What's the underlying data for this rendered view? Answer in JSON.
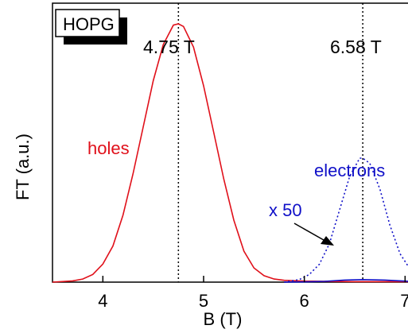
{
  "chart_data": {
    "type": "line",
    "xlabel": "B (T)",
    "ylabel": "FT (a.u.)",
    "xlim": [
      3.5,
      7.1
    ],
    "ylim": [
      0,
      1.08
    ],
    "xticks": [
      {
        "value": 4,
        "label": "4"
      },
      {
        "value": 5,
        "label": "5"
      },
      {
        "value": 6,
        "label": "6"
      },
      {
        "value": 7,
        "label": "7"
      }
    ],
    "grid": false,
    "sample_label": "HOPG",
    "peak_markers": [
      {
        "value": 4.75,
        "label": "4.75 T"
      },
      {
        "value": 6.58,
        "label": "6.58 T"
      }
    ],
    "series": [
      {
        "name": "holes",
        "color": "#e0101a",
        "style": "solid",
        "x": [
          3.5,
          3.7,
          3.8,
          3.9,
          4.0,
          4.1,
          4.2,
          4.3,
          4.4,
          4.5,
          4.6,
          4.7,
          4.75,
          4.8,
          4.9,
          5.0,
          5.1,
          5.2,
          5.3,
          5.4,
          5.5,
          5.6,
          5.7,
          5.8,
          6.0,
          6.5,
          7.1
        ],
        "y": [
          0.0,
          0.005,
          0.012,
          0.03,
          0.07,
          0.14,
          0.26,
          0.42,
          0.6,
          0.78,
          0.92,
          0.995,
          1.0,
          0.99,
          0.91,
          0.76,
          0.58,
          0.4,
          0.24,
          0.12,
          0.055,
          0.025,
          0.012,
          0.007,
          0.004,
          0.002,
          0.002
        ]
      },
      {
        "name": "electrons",
        "color": "#1010c8",
        "style": "dotted",
        "multiplier_label": "x 50",
        "x": [
          5.8,
          5.95,
          6.05,
          6.15,
          6.25,
          6.35,
          6.45,
          6.55,
          6.58,
          6.65,
          6.75,
          6.85,
          6.95,
          7.05,
          7.1
        ],
        "y": [
          0.0,
          0.01,
          0.03,
          0.07,
          0.15,
          0.28,
          0.41,
          0.48,
          0.48,
          0.46,
          0.36,
          0.22,
          0.11,
          0.05,
          0.03
        ]
      },
      {
        "name": "electrons (unscaled)",
        "color": "#1010c8",
        "style": "solid",
        "x": [
          5.8,
          6.0,
          6.2,
          6.4,
          6.58,
          6.8,
          7.0,
          7.1
        ],
        "y": [
          0.0,
          0.001,
          0.003,
          0.008,
          0.01,
          0.008,
          0.004,
          0.002
        ]
      }
    ]
  }
}
